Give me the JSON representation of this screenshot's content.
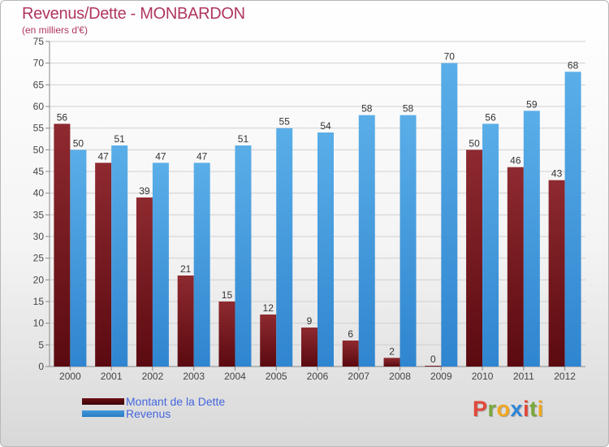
{
  "chart_data": {
    "type": "bar",
    "title": "Revenus/Dette - MONBARDON",
    "subtitle": "(en milliers d'€)",
    "categories": [
      "2000",
      "2001",
      "2002",
      "2003",
      "2004",
      "2005",
      "2006",
      "2007",
      "2008",
      "2009",
      "2010",
      "2011",
      "2012"
    ],
    "series": [
      {
        "name": "Montant de la Dette",
        "color": "#6b0e14",
        "values": [
          56,
          47,
          39,
          21,
          15,
          12,
          9,
          6,
          2,
          0,
          50,
          46,
          43
        ]
      },
      {
        "name": "Revenus",
        "color": "#3f97dc",
        "values": [
          50,
          51,
          47,
          47,
          51,
          55,
          54,
          58,
          58,
          70,
          56,
          59,
          68
        ]
      }
    ],
    "ylim": [
      0,
      75
    ],
    "yticks": [
      0,
      5,
      10,
      15,
      20,
      25,
      30,
      35,
      40,
      45,
      50,
      55,
      60,
      65,
      70,
      75
    ],
    "grid": true,
    "legend_position": "bottom-left"
  },
  "legend": {
    "items": [
      {
        "label": "Montant de la Dette",
        "color": "#6b0e14"
      },
      {
        "label": "Revenus",
        "color": "#3f97dc"
      }
    ]
  },
  "logo": {
    "text": "Proxiti",
    "letter_colors": [
      "#e0483a",
      "#7aa83a",
      "#f0a820",
      "#2f86d6",
      "#e0483a",
      "#7aa83a",
      "#f0a820"
    ]
  }
}
